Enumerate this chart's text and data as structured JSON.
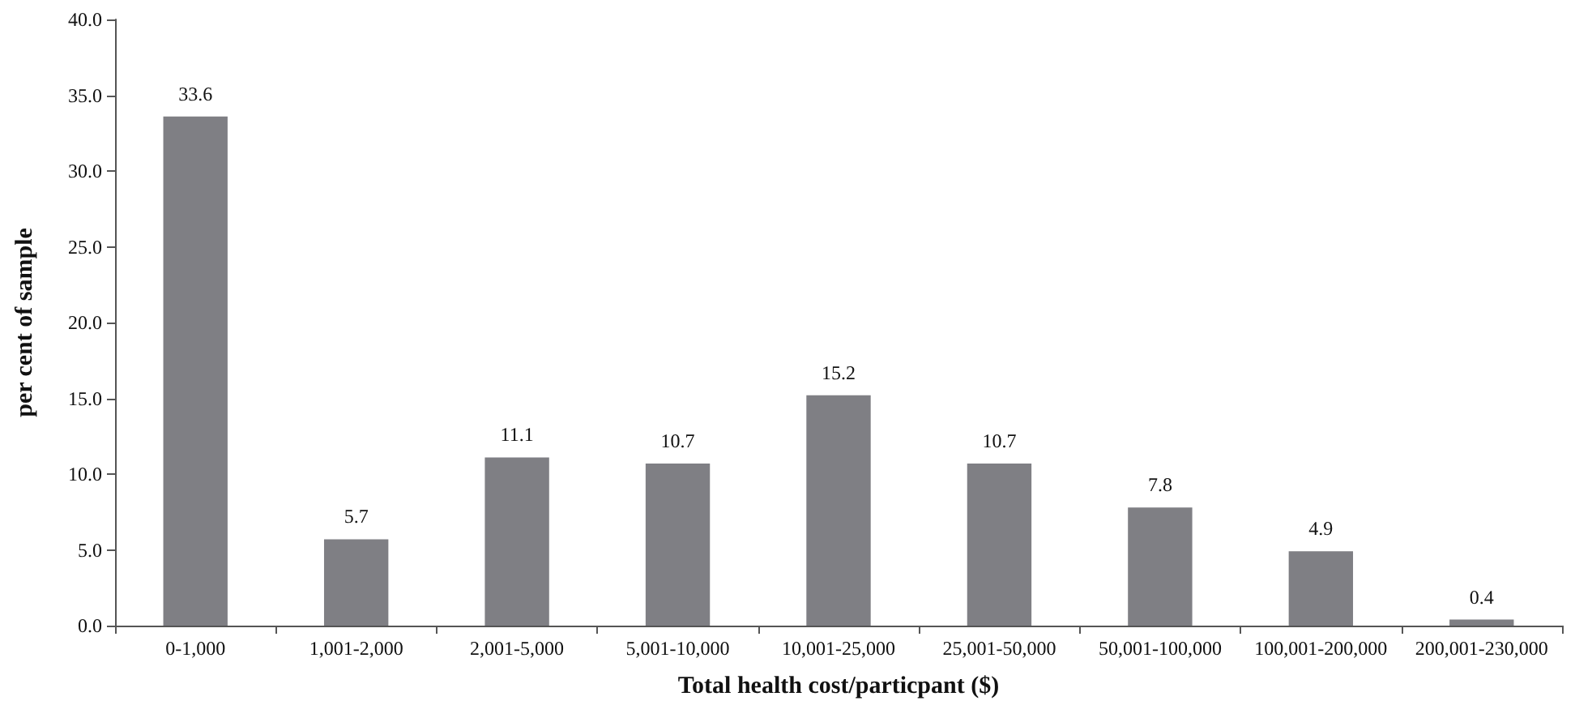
{
  "chart_data": {
    "type": "bar",
    "xlabel": "Total health cost/particpant ($)",
    "ylabel": "per cent of sample",
    "categories": [
      "0-1,000",
      "1,001-2,000",
      "2,001-5,000",
      "5,001-10,000",
      "10,001-25,000",
      "25,001-50,000",
      "50,001-100,000",
      "100,001-200,000",
      "200,001-230,000"
    ],
    "values": [
      33.6,
      5.7,
      11.1,
      10.7,
      15.2,
      10.7,
      7.8,
      4.9,
      0.4
    ],
    "color": "#7f7f84",
    "ylim": [
      0,
      40
    ],
    "yticks": [
      {
        "value": 0,
        "label": "0.0"
      },
      {
        "value": 5,
        "label": "5.0"
      },
      {
        "value": 10,
        "label": "10.0"
      },
      {
        "value": 15,
        "label": "15.0"
      },
      {
        "value": 20,
        "label": "20.0"
      },
      {
        "value": 25,
        "label": "25.0"
      },
      {
        "value": 30,
        "label": "30.0"
      },
      {
        "value": 35,
        "label": "35.0"
      },
      {
        "value": 40,
        "label": "40.0"
      }
    ],
    "data_labels": true,
    "grid": false
  }
}
